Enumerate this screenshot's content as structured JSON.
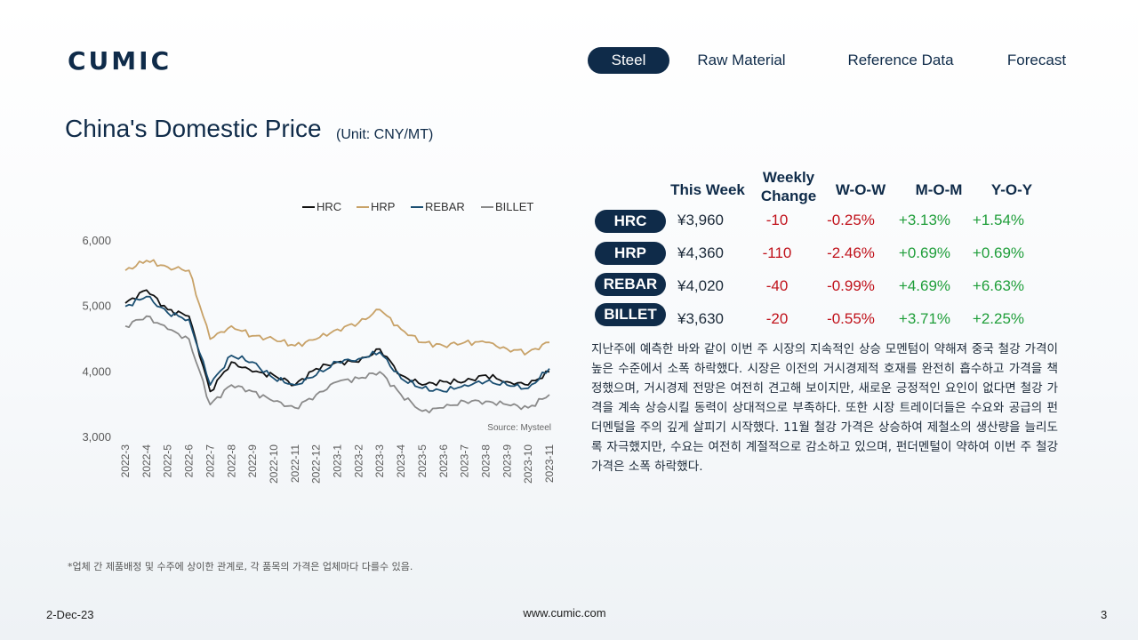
{
  "brand": {
    "logo_text": "CUMIC"
  },
  "nav": {
    "items": [
      {
        "label": "Steel",
        "active": true
      },
      {
        "label": "Raw Material",
        "active": false
      },
      {
        "label": "Reference Data",
        "active": false
      },
      {
        "label": "Forecast",
        "active": false
      }
    ]
  },
  "page": {
    "title": "China's Domestic Price",
    "unit": "(Unit: CNY/MT)"
  },
  "chart_data": {
    "type": "line",
    "x": [
      "2022-3",
      "2022-4",
      "2022-5",
      "2022-6",
      "2022-7",
      "2022-8",
      "2022-9",
      "2022-10",
      "2022-11",
      "2022-12",
      "2023-1",
      "2023-2",
      "2023-3",
      "2023-4",
      "2023-5",
      "2023-6",
      "2023-7",
      "2023-8",
      "2023-9",
      "2023-10",
      "2023-11"
    ],
    "ylim": [
      3000,
      6000
    ],
    "yticks": [
      "6,000",
      "5,000",
      "4,000",
      "3,000"
    ],
    "ytick_values": [
      6000,
      5000,
      4000,
      3000
    ],
    "legend_position": "top-right",
    "source": "Source: Mysteel",
    "series": [
      {
        "name": "HRC",
        "color": "#111111",
        "values": [
          5050,
          5250,
          4950,
          4850,
          3700,
          4150,
          4000,
          3950,
          3800,
          4050,
          4150,
          4150,
          4350,
          3950,
          3800,
          3850,
          3850,
          3950,
          3850,
          3800,
          4000
        ]
      },
      {
        "name": "HRP",
        "color": "#c8a268",
        "values": [
          5550,
          5700,
          5600,
          5550,
          4500,
          4700,
          4550,
          4500,
          4400,
          4500,
          4650,
          4750,
          4950,
          4650,
          4450,
          4400,
          4450,
          4450,
          4350,
          4300,
          4450
        ]
      },
      {
        "name": "REBAR",
        "color": "#1b4f72",
        "values": [
          5000,
          5150,
          4900,
          4800,
          3800,
          4250,
          4150,
          3900,
          3800,
          3950,
          4150,
          4200,
          4300,
          3900,
          3750,
          3700,
          3800,
          3850,
          3800,
          3750,
          4050
        ]
      },
      {
        "name": "BILLET",
        "color": "#8a8a8a",
        "values": [
          4700,
          4850,
          4650,
          4500,
          3500,
          3800,
          3700,
          3550,
          3450,
          3650,
          3850,
          3900,
          4000,
          3650,
          3400,
          3450,
          3550,
          3550,
          3500,
          3450,
          3650
        ]
      }
    ]
  },
  "table": {
    "headers": {
      "this_week": "This Week",
      "weekly_change": "Weekly Change",
      "wow": "W-O-W",
      "mom": "M-O-M",
      "yoy": "Y-O-Y"
    },
    "rows": [
      {
        "name": "HRC",
        "price": "¥3,960",
        "change": "-10",
        "wow": "-0.25%",
        "mom": "+3.13%",
        "yoy": "+1.54%"
      },
      {
        "name": "HRP",
        "price": "¥4,360",
        "change": "-110",
        "wow": "-2.46%",
        "mom": "+0.69%",
        "yoy": "+0.69%"
      },
      {
        "name": "REBAR",
        "price": "¥4,020",
        "change": "-40",
        "wow": "-0.99%",
        "mom": "+4.69%",
        "yoy": "+6.63%"
      },
      {
        "name": "BILLET",
        "price": "¥3,630",
        "change": "-20",
        "wow": "-0.55%",
        "mom": "+3.71%",
        "yoy": "+2.25%"
      }
    ]
  },
  "commentary": "지난주에 예측한 바와 같이 이번 주 시장의 지속적인 상승 모멘텀이 약해져 중국 철강 가격이 높은 수준에서 소폭 하락했다. 시장은 이전의 거시경제적 호재를 완전히 흡수하고 가격을 책정했으며, 거시경제 전망은 여전히 견고해 보이지만, 새로운 긍정적인 요인이 없다면 철강 가격을 계속 상승시킬 동력이 상대적으로 부족하다. 또한 시장 트레이더들은 수요와 공급의 펀더멘털을 주의 깊게 살피기 시작했다. 11월 철강 가격은 상승하여 제철소의 생산량을 늘리도록 자극했지만, 수요는 여전히 계절적으로 감소하고 있으며, 펀더멘털이 약하여 이번 주 철강 가격은 소폭 하락했다.",
  "footnote": "*업체 간 제품배정 및 수주에 상이한 관계로, 각 품목의 가격은 업체마다 다를수 있음.",
  "footer": {
    "date": "2-Dec-23",
    "url": "www.cumic.com",
    "page_number": "3"
  }
}
